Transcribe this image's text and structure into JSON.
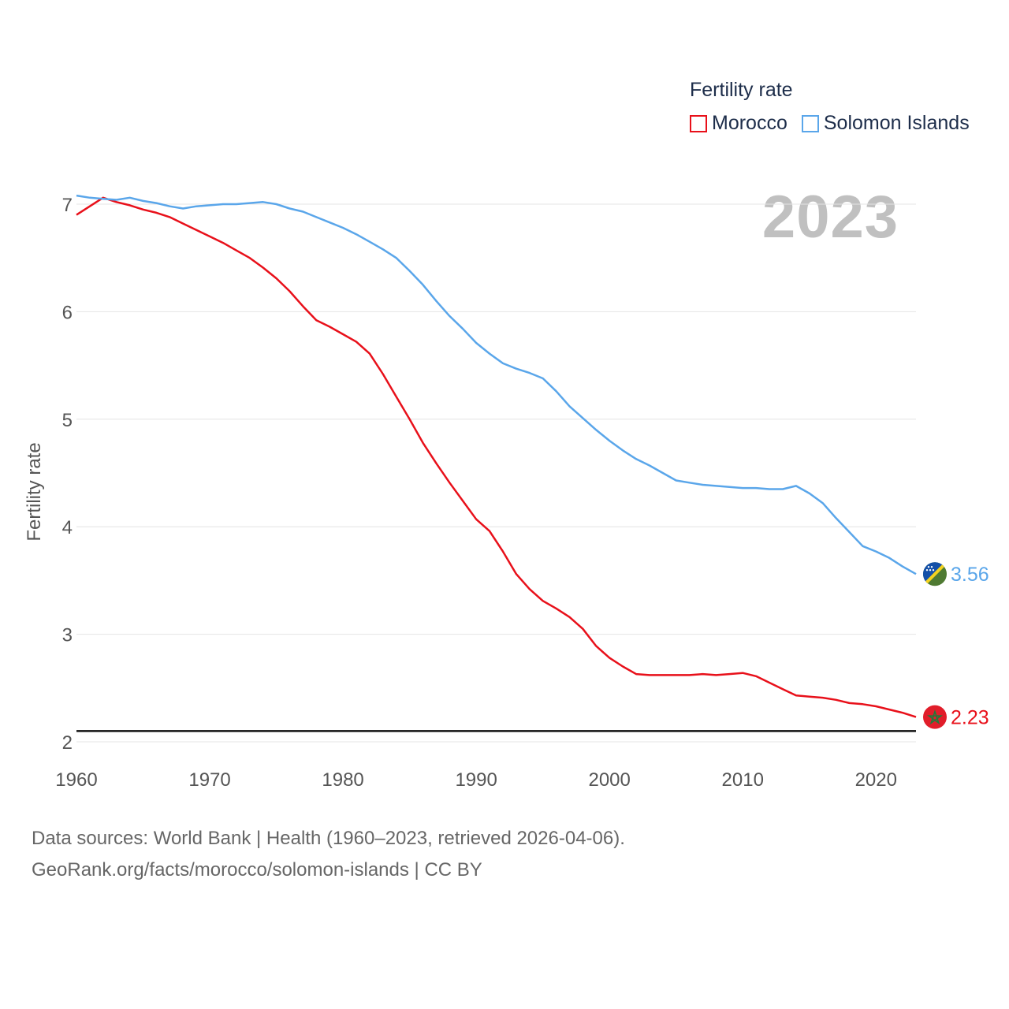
{
  "legend": {
    "title": "Fertility rate",
    "items": [
      {
        "label": "Morocco",
        "color": "#e8101a"
      },
      {
        "label": "Solomon Islands",
        "color": "#5aa6ea"
      }
    ]
  },
  "year_label": "2023",
  "source": {
    "line1": "Data sources: World Bank | Health (1960–2023, retrieved 2026-04-06).",
    "line2": "GeoRank.org/facts/morocco/solomon-islands | CC BY"
  },
  "chart_data": {
    "type": "line",
    "title": "",
    "xlabel": "",
    "ylabel": "Fertility rate",
    "xlim": [
      1960,
      2023
    ],
    "ylim": [
      2,
      7
    ],
    "x_ticks": [
      1960,
      1970,
      1980,
      1990,
      2000,
      2010,
      2020
    ],
    "y_ticks": [
      2,
      3,
      4,
      5,
      6,
      7
    ],
    "reference_line": 2.1,
    "x": [
      1960,
      1961,
      1962,
      1963,
      1964,
      1965,
      1966,
      1967,
      1968,
      1969,
      1970,
      1971,
      1972,
      1973,
      1974,
      1975,
      1976,
      1977,
      1978,
      1979,
      1980,
      1981,
      1982,
      1983,
      1984,
      1985,
      1986,
      1987,
      1988,
      1989,
      1990,
      1991,
      1992,
      1993,
      1994,
      1995,
      1996,
      1997,
      1998,
      1999,
      2000,
      2001,
      2002,
      2003,
      2004,
      2005,
      2006,
      2007,
      2008,
      2009,
      2010,
      2011,
      2012,
      2013,
      2014,
      2015,
      2016,
      2017,
      2018,
      2019,
      2020,
      2021,
      2022,
      2023
    ],
    "series": [
      {
        "name": "Morocco",
        "color": "#e8101a",
        "end_label": "2.23",
        "flag_icon": "morocco-flag-icon",
        "values": [
          6.9,
          6.98,
          7.06,
          7.02,
          6.99,
          6.95,
          6.92,
          6.88,
          6.82,
          6.76,
          6.7,
          6.64,
          6.57,
          6.5,
          6.41,
          6.31,
          6.19,
          6.05,
          5.92,
          5.86,
          5.79,
          5.72,
          5.61,
          5.42,
          5.21,
          5.0,
          4.78,
          4.59,
          4.41,
          4.24,
          4.07,
          3.96,
          3.77,
          3.56,
          3.42,
          3.31,
          3.24,
          3.16,
          3.05,
          2.89,
          2.78,
          2.7,
          2.63,
          2.62,
          2.62,
          2.62,
          2.62,
          2.63,
          2.62,
          2.63,
          2.64,
          2.61,
          2.55,
          2.49,
          2.43,
          2.42,
          2.41,
          2.39,
          2.36,
          2.35,
          2.33,
          2.3,
          2.27,
          2.23
        ]
      },
      {
        "name": "Solomon Islands",
        "color": "#5aa6ea",
        "end_label": "3.56",
        "flag_icon": "solomon-islands-flag-icon",
        "values": [
          7.08,
          7.06,
          7.05,
          7.04,
          7.06,
          7.03,
          7.01,
          6.98,
          6.96,
          6.98,
          6.99,
          7.0,
          7.0,
          7.01,
          7.02,
          7.0,
          6.96,
          6.93,
          6.88,
          6.83,
          6.78,
          6.72,
          6.65,
          6.58,
          6.5,
          6.38,
          6.25,
          6.1,
          5.96,
          5.84,
          5.71,
          5.61,
          5.52,
          5.47,
          5.43,
          5.38,
          5.26,
          5.12,
          5.01,
          4.9,
          4.8,
          4.71,
          4.63,
          4.57,
          4.5,
          4.43,
          4.41,
          4.39,
          4.38,
          4.37,
          4.36,
          4.36,
          4.35,
          4.35,
          4.38,
          4.31,
          4.22,
          4.08,
          3.95,
          3.82,
          3.77,
          3.71,
          3.63,
          3.56
        ]
      }
    ]
  }
}
